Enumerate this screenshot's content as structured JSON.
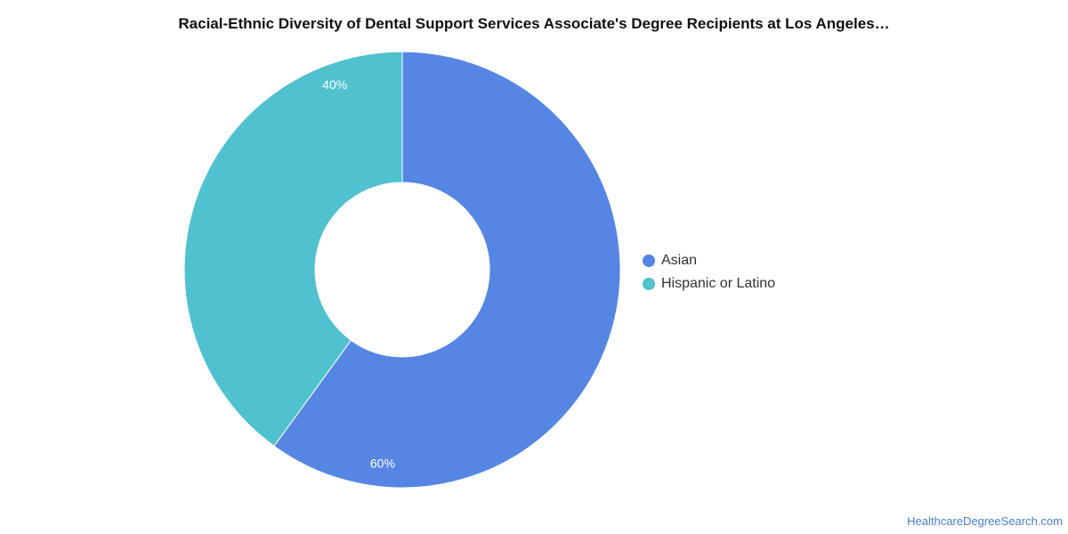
{
  "chart_data": {
    "type": "pie",
    "title": "Racial-Ethnic Diversity of Dental Support Services Associate's Degree Recipients at Los Angeles…",
    "donut": true,
    "categories": [
      "Asian",
      "Hispanic or Latino"
    ],
    "values": [
      60,
      40
    ],
    "value_labels": [
      "60%",
      "40%"
    ],
    "colors": [
      "#5586e3",
      "#50c1cf"
    ],
    "legend_position": "right"
  },
  "source": {
    "label": "HealthcareDegreeSearch.com"
  }
}
